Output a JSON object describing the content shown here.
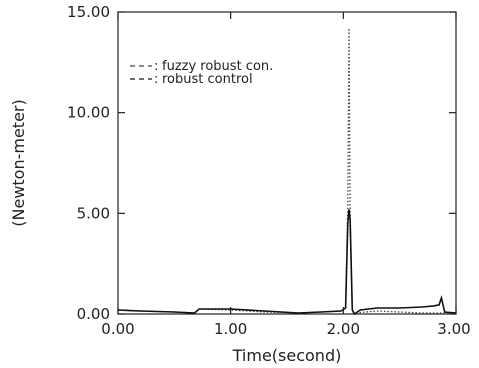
{
  "chart_data": {
    "type": "line",
    "title": "",
    "xlabel": "Time(second)",
    "ylabel": "(Newton-meter)",
    "xlim": [
      0,
      3
    ],
    "ylim": [
      0,
      15
    ],
    "x_ticks": [
      0,
      1,
      2,
      3
    ],
    "x_tick_labels": [
      "0.00",
      "1.00",
      "2.00",
      "3.00"
    ],
    "y_ticks": [
      0,
      5,
      10,
      15
    ],
    "y_tick_labels": [
      "0.00",
      "5.00",
      "10.00",
      "15.00"
    ],
    "grid": false,
    "legend": "top-left",
    "series": [
      {
        "name": "fuzzy robust con.",
        "style": "dotted",
        "color": "#444444",
        "x": [
          0,
          0.2,
          0.5,
          0.68,
          0.72,
          1.0,
          1.3,
          1.6,
          1.8,
          1.98,
          2.02,
          2.04,
          2.05,
          2.06,
          2.08,
          2.1,
          2.2,
          2.3,
          2.5,
          2.7,
          2.85,
          2.9,
          3.0
        ],
        "values": [
          0.2,
          0.15,
          0.1,
          0.05,
          0.25,
          0.2,
          0.1,
          0.05,
          0.1,
          0.15,
          0.3,
          5.5,
          14.2,
          5.2,
          0.1,
          0.05,
          0.1,
          0.15,
          0.1,
          0.05,
          0.05,
          0.05,
          0.05
        ]
      },
      {
        "name": "robust control",
        "style": "solid",
        "color": "#111111",
        "x": [
          0,
          0.2,
          0.5,
          0.68,
          0.72,
          1.0,
          1.3,
          1.6,
          1.8,
          1.98,
          2.02,
          2.04,
          2.05,
          2.06,
          2.08,
          2.1,
          2.15,
          2.3,
          2.5,
          2.7,
          2.8,
          2.85,
          2.87,
          2.9,
          3.0
        ],
        "values": [
          0.2,
          0.15,
          0.1,
          0.05,
          0.25,
          0.25,
          0.15,
          0.05,
          0.1,
          0.15,
          0.3,
          4.5,
          5.2,
          4.7,
          0.2,
          0.0,
          0.2,
          0.3,
          0.3,
          0.35,
          0.4,
          0.45,
          0.8,
          0.1,
          0.05
        ]
      }
    ]
  }
}
